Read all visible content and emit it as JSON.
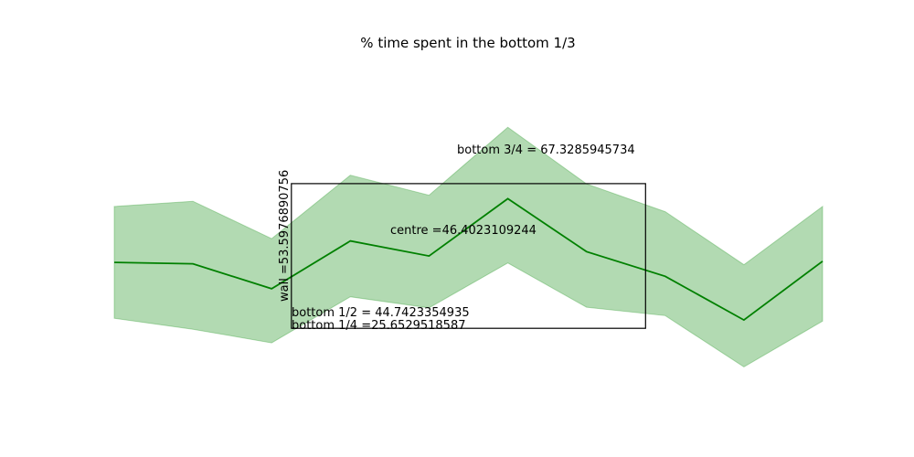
{
  "chart_data": {
    "type": "area",
    "title": "% time spent in the bottom 1/3",
    "xlabel": "",
    "ylabel": "",
    "axes_visible": false,
    "grid": false,
    "x": [
      0,
      1,
      2,
      3,
      4,
      5,
      6,
      7,
      8,
      9
    ],
    "series": [
      {
        "kind": "line",
        "color": "#008000",
        "values": [
          48.3,
          47.8,
          39.2,
          55.7,
          50.5,
          70.3,
          52.0,
          43.5,
          28.4,
          48.7
        ]
      },
      {
        "kind": "band",
        "color": "#2e9a2e",
        "opacity": 0.37,
        "upper": [
          67.6,
          69.4,
          56.5,
          78.4,
          71.5,
          95.0,
          75.4,
          65.8,
          47.5,
          67.6
        ],
        "lower": [
          29.0,
          25.2,
          20.5,
          36.4,
          32.6,
          48.1,
          32.8,
          29.9,
          12.2,
          28.0
        ]
      }
    ],
    "ylim": [
      0,
      120
    ],
    "annotations": {
      "wall": "wall =53.5976890756",
      "centre": "centre =46.4023109244",
      "bottom_three_quarters": "bottom 3/4 = 67.3285945734",
      "bottom_half": "bottom 1/2 = 44.7423354935",
      "bottom_quarter": "bottom 1/4 =25.6529518587"
    },
    "rectangle": {
      "x0": 2.25,
      "x1": 6.75,
      "y0": 25.5,
      "y1": 75.5,
      "stroke": "#000000"
    }
  }
}
